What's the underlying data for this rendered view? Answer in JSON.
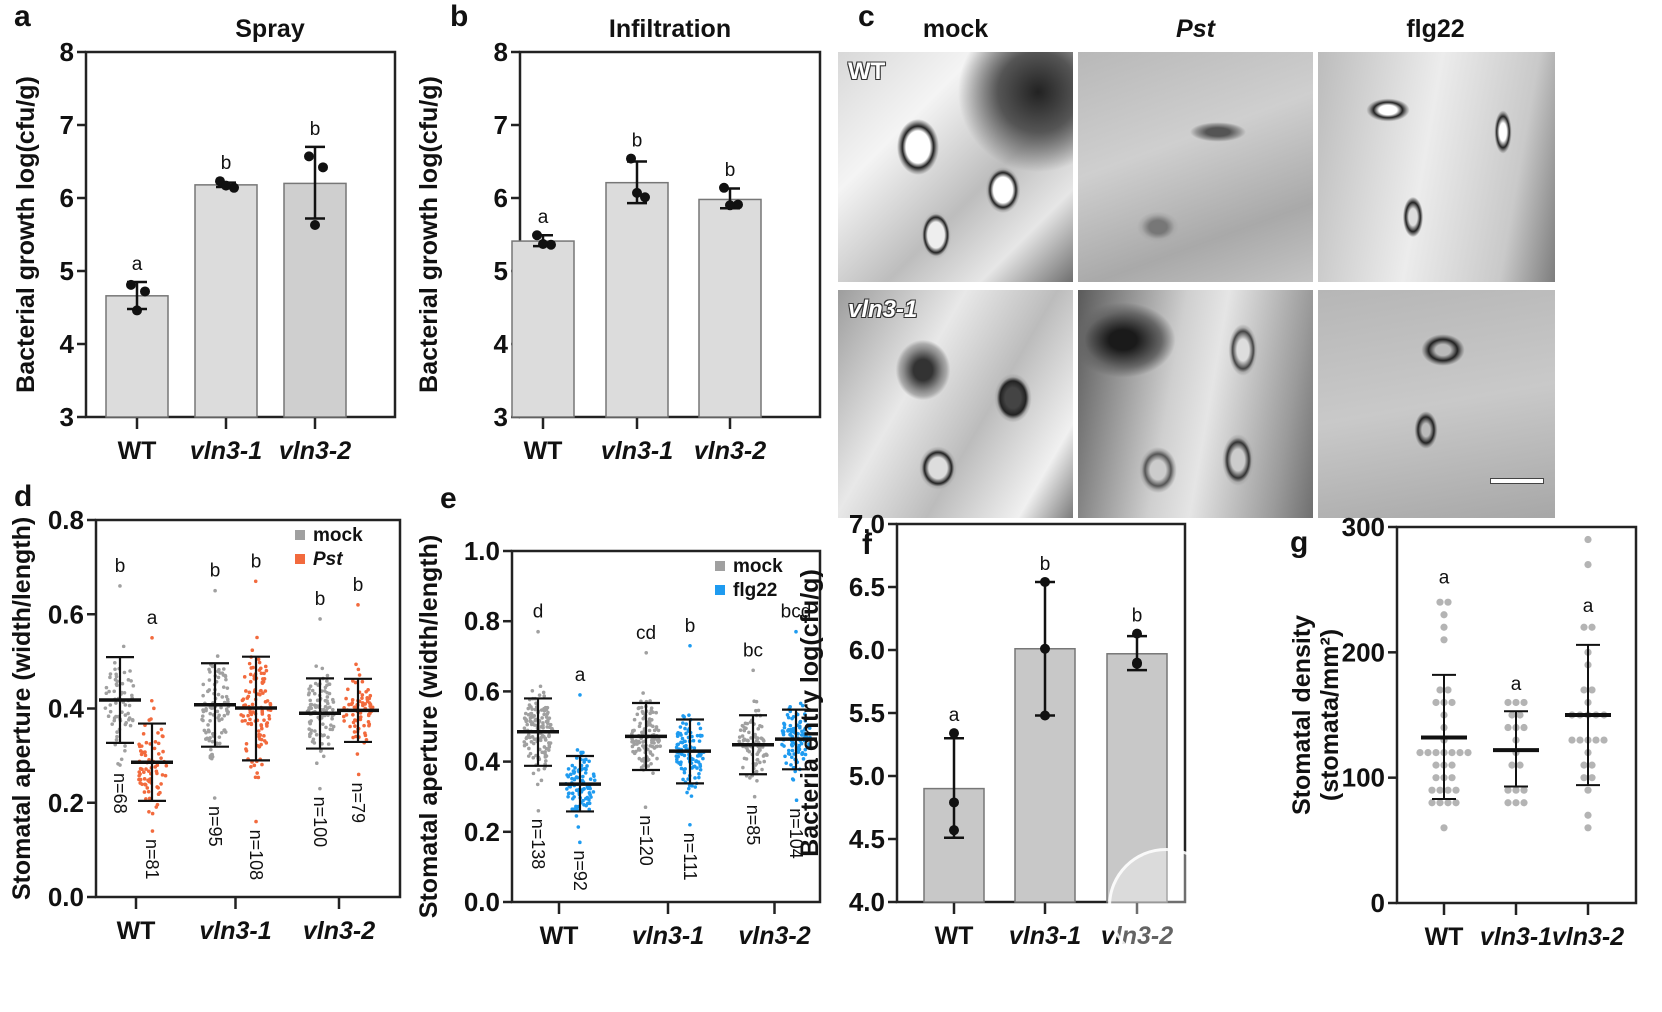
{
  "panels": {
    "a": {
      "letter": "a",
      "title": "Spray"
    },
    "b": {
      "letter": "b",
      "title": "Infiltration"
    },
    "c": {
      "letter": "c",
      "columns": [
        {
          "label": "mock",
          "italic": false
        },
        {
          "label": "Pst",
          "italic": true
        },
        {
          "label": "flg22",
          "italic": false
        }
      ],
      "rows": [
        {
          "label": "WT",
          "italic": false
        },
        {
          "label": "vln3-1",
          "italic": true
        }
      ],
      "scale_bar": true
    },
    "d": {
      "letter": "d"
    },
    "e": {
      "letter": "e"
    },
    "f": {
      "letter": "f"
    },
    "g": {
      "letter": "g"
    }
  },
  "chart_data": [
    {
      "id": "a",
      "type": "bar",
      "title": "Spray",
      "xlabel": "",
      "ylabel": "Bacterial growth log(cfu/g)",
      "ylim": [
        3,
        8
      ],
      "yticks": [
        "3",
        "4",
        "5",
        "6",
        "7",
        "8"
      ],
      "categories": [
        "WT",
        "vln3-1",
        "vln3-2"
      ],
      "categories_italic": [
        false,
        true,
        true
      ],
      "values": [
        4.66,
        6.18,
        6.2
      ],
      "error_low": [
        4.48,
        6.15,
        5.72
      ],
      "error_high": [
        4.85,
        6.21,
        6.7
      ],
      "points": [
        [
          4.81,
          4.72,
          4.46
        ],
        [
          6.23,
          6.14,
          6.17
        ],
        [
          6.57,
          6.42,
          5.63
        ]
      ],
      "significance": [
        "a",
        "b",
        "b"
      ],
      "bar_colors": [
        "#dcdcdc",
        "#dcdcdc",
        "#cfcfcf"
      ]
    },
    {
      "id": "b",
      "type": "bar",
      "title": "Infiltration",
      "xlabel": "",
      "ylabel": "Bacterial growth log(cfu/g)",
      "ylim": [
        3,
        8
      ],
      "yticks": [
        "3",
        "4",
        "5",
        "6",
        "7",
        "8"
      ],
      "categories": [
        "WT",
        "vln3-1",
        "vln3-2"
      ],
      "categories_italic": [
        false,
        true,
        true
      ],
      "values": [
        5.41,
        6.21,
        5.98
      ],
      "error_low": [
        5.34,
        5.93,
        5.86
      ],
      "error_high": [
        5.49,
        6.5,
        6.13
      ],
      "points": [
        [
          5.49,
          5.36,
          5.37
        ],
        [
          6.54,
          6.01,
          6.07
        ],
        [
          6.14,
          5.91,
          5.9
        ]
      ],
      "significance": [
        "a",
        "b",
        "b"
      ],
      "bar_colors": [
        "#dcdcdc",
        "#dcdcdc",
        "#dcdcdc"
      ]
    },
    {
      "id": "d",
      "type": "scatter",
      "xlabel": "",
      "ylabel": "Stomatal aperture (width/length)",
      "ylim": [
        0,
        0.8
      ],
      "yticks": [
        "0.0",
        "0.2",
        "0.4",
        "0.6",
        "0.8"
      ],
      "categories": [
        "WT",
        "vln3-1",
        "vln3-2"
      ],
      "categories_italic": [
        false,
        true,
        true
      ],
      "legend": {
        "position": "top-right",
        "entries": [
          {
            "label": "mock",
            "italic": false,
            "color": "#a0a0a0"
          },
          {
            "label": "Pst",
            "italic": true,
            "color": "#f26a3d"
          }
        ]
      },
      "series": [
        {
          "name": "mock",
          "color": "#a0a0a0",
          "mean": [
            0.418,
            0.408,
            0.39
          ],
          "sd_low": [
            0.327,
            0.319,
            0.315
          ],
          "sd_high": [
            0.509,
            0.496,
            0.464
          ],
          "min": [
            0.28,
            0.21,
            0.23
          ],
          "max": [
            0.66,
            0.65,
            0.59
          ],
          "n": [
            "n=68",
            "n=95",
            "n=100"
          ],
          "significance": [
            "b",
            "b",
            "b"
          ]
        },
        {
          "name": "Pst",
          "color": "#f26a3d",
          "mean": [
            0.286,
            0.401,
            0.396
          ],
          "sd_low": [
            0.204,
            0.29,
            0.329
          ],
          "sd_high": [
            0.368,
            0.51,
            0.463
          ],
          "min": [
            0.14,
            0.16,
            0.26
          ],
          "max": [
            0.55,
            0.67,
            0.62
          ],
          "n": [
            "n=81",
            "n=108",
            "n=79"
          ],
          "significance": [
            "a",
            "b",
            "b"
          ]
        }
      ]
    },
    {
      "id": "e",
      "type": "scatter",
      "xlabel": "",
      "ylabel": "Stomatal aperture (width/length)",
      "ylim": [
        0,
        1.0
      ],
      "yticks": [
        "0.0",
        "0.2",
        "0.4",
        "0.6",
        "0.8",
        "1.0"
      ],
      "categories": [
        "WT",
        "vln3-1",
        "vln3-2"
      ],
      "categories_italic": [
        false,
        true,
        true
      ],
      "legend": {
        "position": "top-right",
        "entries": [
          {
            "label": "mock",
            "italic": false,
            "color": "#a0a0a0"
          },
          {
            "label": "flg22",
            "italic": false,
            "color": "#1e9bf0"
          }
        ]
      },
      "series": [
        {
          "name": "mock",
          "color": "#a0a0a0",
          "mean": [
            0.485,
            0.472,
            0.448
          ],
          "sd_low": [
            0.388,
            0.376,
            0.364
          ],
          "sd_high": [
            0.58,
            0.567,
            0.532
          ],
          "min": [
            0.26,
            0.27,
            0.3
          ],
          "max": [
            0.77,
            0.71,
            0.66
          ],
          "n": [
            "n=138",
            "n=120",
            "n=85"
          ],
          "significance": [
            "d",
            "cd",
            "bc"
          ]
        },
        {
          "name": "flg22",
          "color": "#1e9bf0",
          "mean": [
            0.336,
            0.43,
            0.464
          ],
          "sd_low": [
            0.258,
            0.338,
            0.378
          ],
          "sd_high": [
            0.416,
            0.52,
            0.548
          ],
          "min": [
            0.17,
            0.22,
            0.29
          ],
          "max": [
            0.59,
            0.73,
            0.77
          ],
          "n": [
            "n=92",
            "n=111",
            "n=104"
          ],
          "significance": [
            "a",
            "b",
            "bcd"
          ]
        }
      ]
    },
    {
      "id": "f",
      "type": "bar",
      "xlabel": "",
      "ylabel": "Bacteria entry log(cfu/g)",
      "ylim": [
        4.0,
        7.0
      ],
      "yticks": [
        "4.0",
        "4.5",
        "5.0",
        "5.5",
        "6.0",
        "6.5",
        "7.0"
      ],
      "categories": [
        "WT",
        "vln3-1",
        "vln3-2"
      ],
      "categories_italic": [
        false,
        true,
        true
      ],
      "values": [
        4.9,
        6.01,
        5.97
      ],
      "error_low": [
        4.51,
        5.48,
        5.84
      ],
      "error_high": [
        5.3,
        6.54,
        6.11
      ],
      "points": [
        [
          5.34,
          4.79,
          4.57
        ],
        [
          6.54,
          6.01,
          5.48
        ],
        [
          6.13,
          5.89,
          5.9
        ]
      ],
      "significance": [
        "a",
        "b",
        "b"
      ],
      "bar_colors": [
        "#c8c8c8",
        "#c8c8c8",
        "#c8c8c8"
      ]
    },
    {
      "id": "g",
      "type": "scatter",
      "xlabel": "",
      "ylabel": "Stomatal density",
      "ylabel2": "(stomata/mm²)",
      "ylim": [
        0,
        300
      ],
      "yticks": [
        "0",
        "100",
        "200",
        "300"
      ],
      "categories": [
        "WT",
        "vln3-1",
        "vln3-2"
      ],
      "categories_italic": [
        false,
        true,
        true
      ],
      "series": [
        {
          "name": "density",
          "color": "#b4b4b4",
          "mean": [
            132,
            122,
            150
          ],
          "sd_low": [
            83,
            93,
            94
          ],
          "sd_high": [
            182,
            153,
            206
          ],
          "significance": [
            "a",
            "a",
            "a"
          ],
          "points": [
            [
              240,
              240,
              230,
              220,
              210,
              170,
              170,
              160,
              160,
              160,
              150,
              140,
              130,
              120,
              120,
              120,
              120,
              120,
              120,
              120,
              110,
              110,
              110,
              100,
              100,
              100,
              90,
              90,
              90,
              90,
              80,
              80,
              80,
              80,
              60
            ],
            [
              160,
              160,
              160,
              150,
              150,
              140,
              140,
              140,
              130,
              120,
              110,
              110,
              90,
              90,
              90,
              80,
              80,
              80
            ],
            [
              290,
              270,
              220,
              220,
              200,
              190,
              170,
              170,
              160,
              150,
              150,
              150,
              150,
              150,
              130,
              130,
              130,
              130,
              130,
              120,
              110,
              110,
              100,
              100,
              90,
              70,
              60
            ]
          ]
        }
      ]
    }
  ]
}
